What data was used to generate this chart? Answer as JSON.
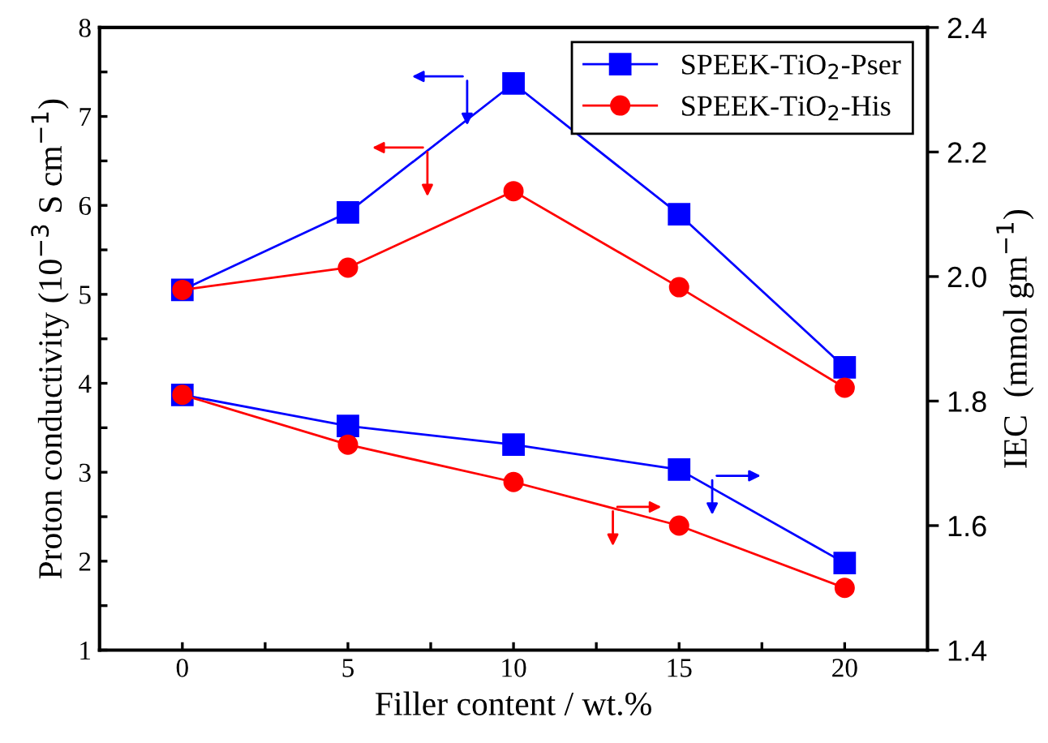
{
  "chart_data": {
    "type": "line",
    "xlabel": "Filler content / wt.%",
    "ylabel": "Proton conductivity (10$^{−3}$ S cm$^{−1}$)",
    "y2label": "IEC  (mmol gm$^{−1}$)",
    "x": [
      0,
      5,
      10,
      15,
      20
    ],
    "series": [
      {
        "name": "SPEEK-TiO$_{2}$-Pser",
        "color": "#0000ff",
        "marker": "square",
        "values": [
          5.05,
          5.92,
          7.37,
          5.9,
          4.18
        ]
      },
      {
        "name": "SPEEK-TiO$_{2}$-His",
        "color": "#ff0000",
        "marker": "circle",
        "values": [
          5.05,
          5.3,
          6.16,
          5.08,
          3.95
        ]
      },
      {
        "color": "#0000ff",
        "marker": "square",
        "axis": "y2",
        "values": [
          1.81,
          1.76,
          1.73,
          1.69,
          1.54
        ]
      },
      {
        "color": "#ff0000",
        "marker": "circle",
        "axis": "y2",
        "values": [
          1.81,
          1.73,
          1.67,
          1.6,
          1.5
        ]
      }
    ],
    "xlim": [
      -2.5,
      22.5
    ],
    "xticks": [
      0,
      {
        "value": 2.5,
        "label": null
      },
      5,
      {
        "value": 7.5,
        "label": null
      },
      10,
      {
        "value": 12.5,
        "label": null
      },
      15,
      {
        "value": 17.5,
        "label": null
      },
      20
    ],
    "ylim": [
      1,
      8
    ],
    "yticks": [
      1,
      {
        "value": 1.5,
        "label": null
      },
      2,
      {
        "value": 2.5,
        "label": null
      },
      3,
      {
        "value": 3.5,
        "label": null
      },
      4,
      {
        "value": 4.5,
        "label": null
      },
      5,
      {
        "value": 5.5,
        "label": null
      },
      6,
      {
        "value": 6.5,
        "label": null
      },
      7,
      {
        "value": 7.5,
        "label": null
      },
      8
    ],
    "y2lim": [
      1.4,
      2.4
    ],
    "y2ticks": [
      {
        "value": 1.4,
        "label": "1.4"
      },
      {
        "value": 1.6,
        "label": "1.6"
      },
      {
        "value": 1.8,
        "label": "1.8"
      },
      {
        "value": 2.0,
        "label": "2.0"
      },
      {
        "value": 2.2,
        "label": "2.2"
      },
      {
        "value": 2.4,
        "label": "2.4"
      }
    ],
    "legend": "top right",
    "grid": false
  }
}
